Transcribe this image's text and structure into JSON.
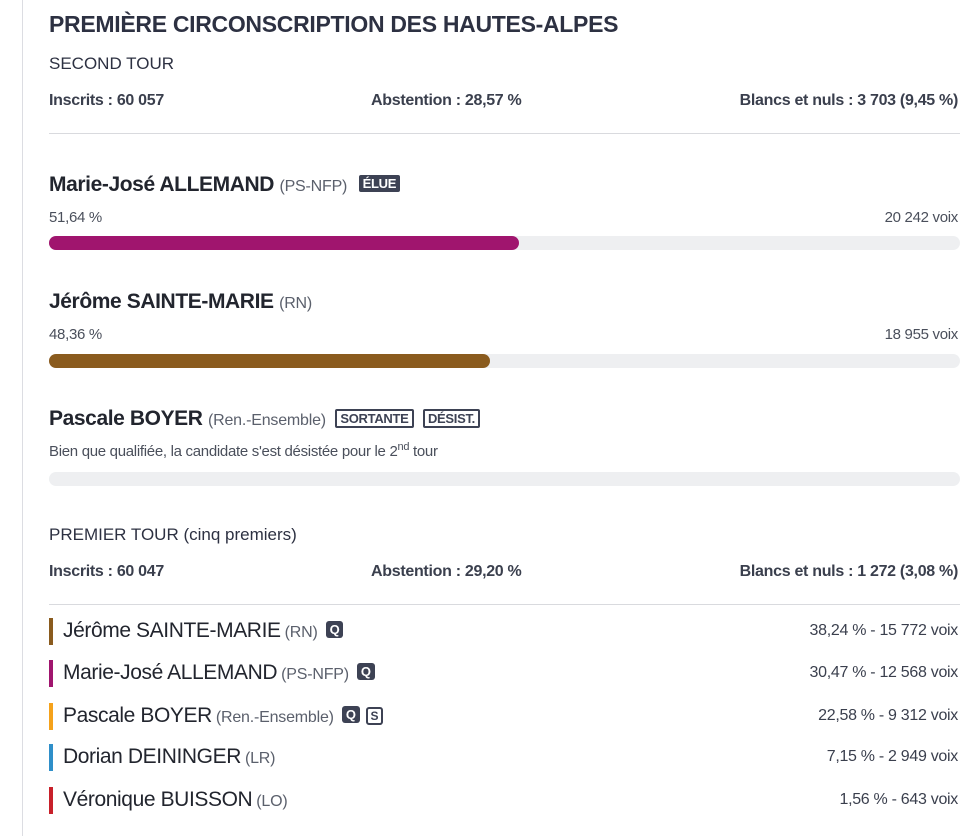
{
  "header": {
    "title": "PREMIÈRE CIRCONSCRIPTION DES HAUTES-ALPES",
    "round_label": "SECOND TOUR",
    "inscrits": "Inscrits : 60 057",
    "abstention": "Abstention : 28,57 %",
    "blancs": "Blancs et nuls : 3 703 (9,45 %)"
  },
  "second_round": {
    "candidates": [
      {
        "name": "Marie-José ALLEMAND",
        "party": "(PS-NFP)",
        "badge": "ÉLUE",
        "percent_label": "51,64 %",
        "votes_label": "20 242 voix",
        "share": 51.64,
        "color": "#a0156e"
      },
      {
        "name": "Jérôme SAINTE-MARIE",
        "party": "(RN)",
        "percent_label": "48,36 %",
        "votes_label": "18 955 voix",
        "share": 48.36,
        "color": "#8a5b1e"
      },
      {
        "name": "Pascale BOYER",
        "party": "(Ren.-Ensemble)",
        "badges": [
          "SORTANTE",
          "DÉSIST."
        ],
        "note_text": "Bien que qualifiée, la candidate s'est désistée pour le 2",
        "note_sup": "nd",
        "note_end": " tour",
        "share": 0
      }
    ]
  },
  "first_round": {
    "label": "PREMIER TOUR (cinq premiers)",
    "inscrits": "Inscrits : 60 047",
    "abstention": "Abstention : 29,20 %",
    "blancs": "Blancs et nuls : 1 272 (3,08 %)",
    "candidates": [
      {
        "name": "Jérôme SAINTE-MARIE",
        "party": "(RN)",
        "badges_solid": [
          "Q"
        ],
        "badges_outline": [],
        "result": "38,24 % - 15 772 voix",
        "color": "#8a5b1e"
      },
      {
        "name": "Marie-José ALLEMAND",
        "party": "(PS-NFP)",
        "badges_solid": [
          "Q"
        ],
        "badges_outline": [],
        "result": "30,47 % - 12 568 voix",
        "color": "#a0156e"
      },
      {
        "name": "Pascale BOYER",
        "party": "(Ren.-Ensemble)",
        "badges_solid": [
          "Q"
        ],
        "badges_outline": [
          "S"
        ],
        "result": "22,58 % - 9 312 voix",
        "color": "#f5a21b"
      },
      {
        "name": "Dorian DEININGER",
        "party": "(LR)",
        "badges_solid": [],
        "badges_outline": [],
        "result": "7,15 % - 2 949 voix",
        "color": "#2f8fc9"
      },
      {
        "name": "Véronique BUISSON",
        "party": "(LO)",
        "badges_solid": [],
        "badges_outline": [],
        "result": "1,56 % - 643 voix",
        "color": "#c8202a"
      }
    ]
  }
}
